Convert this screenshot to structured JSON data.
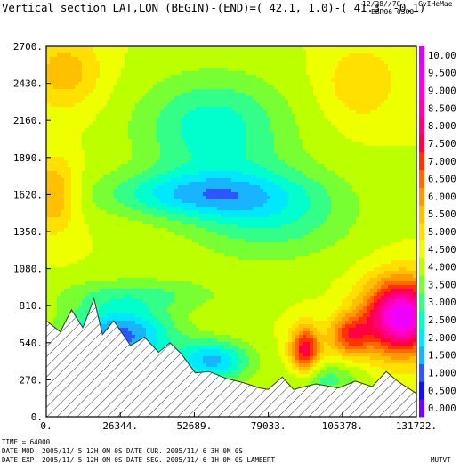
{
  "header": {
    "title": "Vertical section LAT,LON (BEGIN)-(END)=( 42.1,  1.0)-( 41.3, -0.1)",
    "date_code": "12/28//7C",
    "model_tag": "CvIHeMae",
    "run_tag": "EBR06 0300"
  },
  "footer": {
    "time_line": "TIME =     64000.",
    "line1": "DATE MOD. 2005/11/ 5  12H 0M 0S     DATE CUR. 2005/11/ 6   3H 0M 0S",
    "line2": "DATE EXP. 2005/11/ 5  12H 0M 0S     DATE SEG. 2005/11/ 6   1H 0M 0S    LAMBERT",
    "field_name": "MUTVT"
  },
  "chart_data": {
    "type": "heatmap",
    "title": "Vertical section LAT,LON (BEGIN)-(END)=( 42.1,  1.0)-( 41.3, -0.1)",
    "x_ticks": [
      "0.",
      "26344.",
      "52689.",
      "79033.",
      "105378.",
      "131722."
    ],
    "xlim": [
      0,
      131722
    ],
    "y_ticks": [
      "0.",
      "270.",
      "540.",
      "810.",
      "1080.",
      "1350.",
      "1620.",
      "1890.",
      "2160.",
      "2430.",
      "2700."
    ],
    "ylim": [
      0,
      2700
    ],
    "colorbar": {
      "levels": [
        "0.000",
        "0.500",
        "1.000",
        "1.500",
        "2.000",
        "2.500",
        "3.000",
        "3.500",
        "4.000",
        "4.500",
        "5.000",
        "5.500",
        "6.000",
        "6.500",
        "7.000",
        "7.500",
        "8.000",
        "8.500",
        "9.000",
        "9.500",
        "10.00"
      ],
      "colors": [
        "#7a00ff",
        "#1010ff",
        "#2f55ff",
        "#18b4ff",
        "#00e8ff",
        "#00ffcc",
        "#33ff88",
        "#77ff33",
        "#bbff00",
        "#eeff00",
        "#ffe000",
        "#ffc000",
        "#ff9900",
        "#ff6a00",
        "#ff3300",
        "#ff0044",
        "#ff0077",
        "#ff00aa",
        "#ff00dd",
        "#ee00ff",
        "#dd00ff"
      ]
    },
    "terrain_profile": [
      [
        0,
        700
      ],
      [
        5000,
        620
      ],
      [
        9000,
        780
      ],
      [
        13000,
        650
      ],
      [
        17000,
        860
      ],
      [
        20000,
        600
      ],
      [
        24000,
        700
      ],
      [
        30000,
        520
      ],
      [
        35000,
        580
      ],
      [
        40000,
        470
      ],
      [
        44000,
        540
      ],
      [
        48000,
        460
      ],
      [
        53000,
        320
      ],
      [
        58000,
        330
      ],
      [
        64000,
        280
      ],
      [
        70000,
        250
      ],
      [
        76000,
        210
      ],
      [
        79000,
        200
      ],
      [
        84000,
        290
      ],
      [
        88000,
        200
      ],
      [
        96000,
        240
      ],
      [
        104000,
        210
      ],
      [
        110000,
        260
      ],
      [
        116000,
        220
      ],
      [
        121000,
        330
      ],
      [
        125000,
        260
      ],
      [
        131722,
        170
      ]
    ],
    "field": {
      "x_samples": [
        0,
        6586,
        13172,
        19758,
        26344,
        32930,
        39517,
        46103,
        52689,
        59275,
        65861,
        72447,
        79033,
        85620,
        92206,
        98792,
        105378,
        111964,
        118550,
        125136,
        131722
      ],
      "y_samples": [
        0,
        135,
        270,
        405,
        540,
        675,
        810,
        945,
        1080,
        1215,
        1350,
        1485,
        1620,
        1755,
        1890,
        2025,
        2160,
        2295,
        2430,
        2565,
        2700
      ]
    }
  }
}
